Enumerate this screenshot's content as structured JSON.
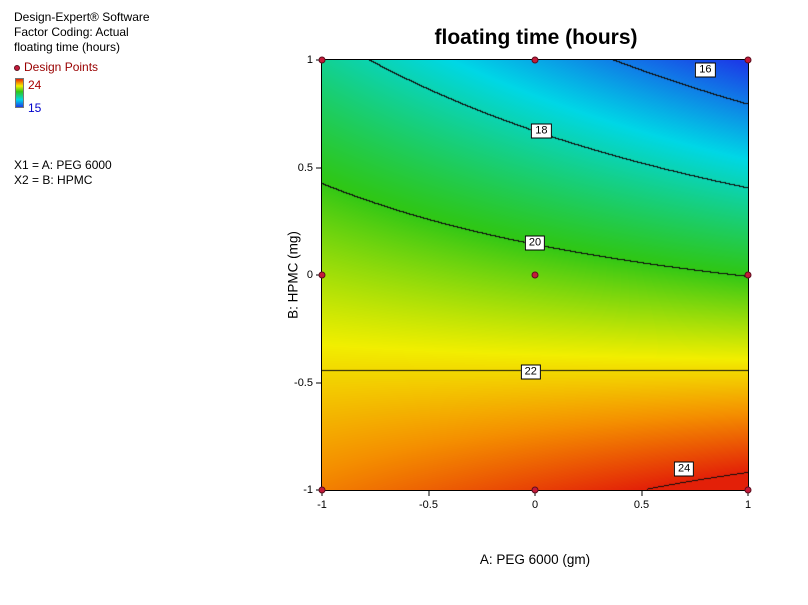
{
  "info_panel": {
    "line1": "Design-Expert® Software",
    "line2": "Factor Coding: Actual",
    "line3": "floating time (hours)",
    "design_points_label": "Design Points",
    "legend_high": "24",
    "legend_low": "15",
    "x1_line": "X1 = A: PEG 6000",
    "x2_line": "X2 = B: HPMC"
  },
  "chart_data": {
    "type": "contour",
    "title": "floating time (hours)",
    "xlabel": "A: PEG 6000 (gm)",
    "ylabel": "B: HPMC (mg)",
    "xlim": [
      -1,
      1
    ],
    "ylim": [
      -1,
      1
    ],
    "x_ticks": [
      -1,
      -0.5,
      0,
      0.5,
      1
    ],
    "y_ticks": [
      1,
      0.5,
      0,
      -0.5,
      -1
    ],
    "value_range": [
      15,
      24
    ],
    "contour_levels": [
      16,
      18,
      20,
      22,
      24
    ],
    "contour_labels": [
      {
        "level": 16,
        "a": 0.8,
        "b": 0.955
      },
      {
        "level": 18,
        "a": 0.03,
        "b": 0.67
      },
      {
        "level": 20,
        "a": 0.0,
        "b": 0.15
      },
      {
        "level": 22,
        "a": -0.02,
        "b": -0.45
      },
      {
        "level": 24,
        "a": 0.7,
        "b": -0.9
      }
    ],
    "design_points": [
      [
        -1,
        1
      ],
      [
        0,
        1
      ],
      [
        1,
        1
      ],
      [
        -1,
        0
      ],
      [
        0,
        0
      ],
      [
        1,
        0
      ],
      [
        -1,
        -1
      ],
      [
        0,
        -1
      ],
      [
        1,
        -1
      ]
    ],
    "surface_model": {
      "b0": 20.5,
      "bA": -0.54,
      "bB": -3.5,
      "bAA": 0,
      "bBB": -0.35,
      "bAB": -1.2
    },
    "color_scale": {
      "stops": [
        {
          "t": 0.0,
          "color": "#1c3ce8"
        },
        {
          "t": 0.26,
          "color": "#00d8e6"
        },
        {
          "t": 0.55,
          "color": "#2fc716"
        },
        {
          "t": 0.75,
          "color": "#f2ef00"
        },
        {
          "t": 0.87,
          "color": "#f59100"
        },
        {
          "t": 1.0,
          "color": "#e32008"
        }
      ]
    },
    "point_color": "#c41a3a"
  },
  "colors": {
    "design_points_text": "#990000",
    "legend_high_text": "#aa0000",
    "legend_low_text": "#0000cc"
  }
}
